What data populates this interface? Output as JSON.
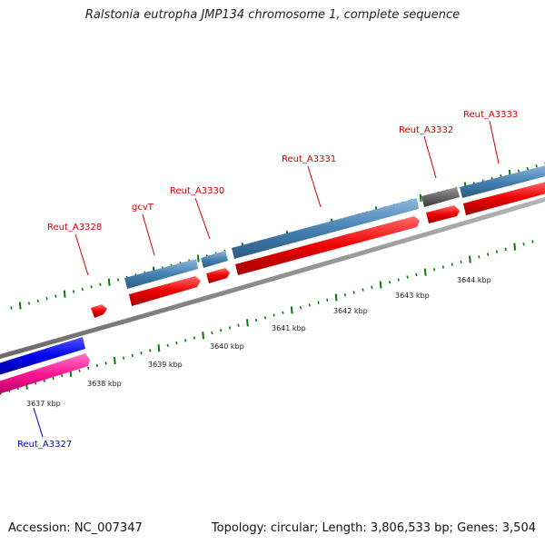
{
  "title": "Ralstonia eutropha JMP134 chromosome 1, complete sequence",
  "colors": {
    "forward_gene": "#4682b4",
    "reverse_gene": "#ff0000",
    "gray_feature": "#666666",
    "blue_feature": "#0000ee",
    "pink_feature": "#ff1493",
    "backbone": "#888888",
    "tick": "#0a7a0a",
    "label_red": "#cc0000",
    "label_blue": "#0000cc"
  },
  "gene_labels": [
    {
      "id": "reut-a3328",
      "text": "Reut_A3328",
      "color": "red"
    },
    {
      "id": "gcvt",
      "text": "gcvT",
      "color": "red"
    },
    {
      "id": "reut-a3330",
      "text": "Reut_A3330",
      "color": "red"
    },
    {
      "id": "reut-a3331",
      "text": "Reut_A3331",
      "color": "red"
    },
    {
      "id": "reut-a3332",
      "text": "Reut_A3332",
      "color": "red"
    },
    {
      "id": "reut-a3333",
      "text": "Reut_A3333",
      "color": "red"
    },
    {
      "id": "reut-a3327",
      "text": "Reut_A3327",
      "color": "blue"
    }
  ],
  "kbp_labels": [
    "3637 kbp",
    "3638 kbp",
    "3639 kbp",
    "3640 kbp",
    "3641 kbp",
    "3642 kbp",
    "3643 kbp",
    "3644 kbp"
  ],
  "footer": {
    "accession": "Accession: NC_007347",
    "summary": "Topology: circular; Length: 3,806,533 bp; Genes: 3,504"
  }
}
